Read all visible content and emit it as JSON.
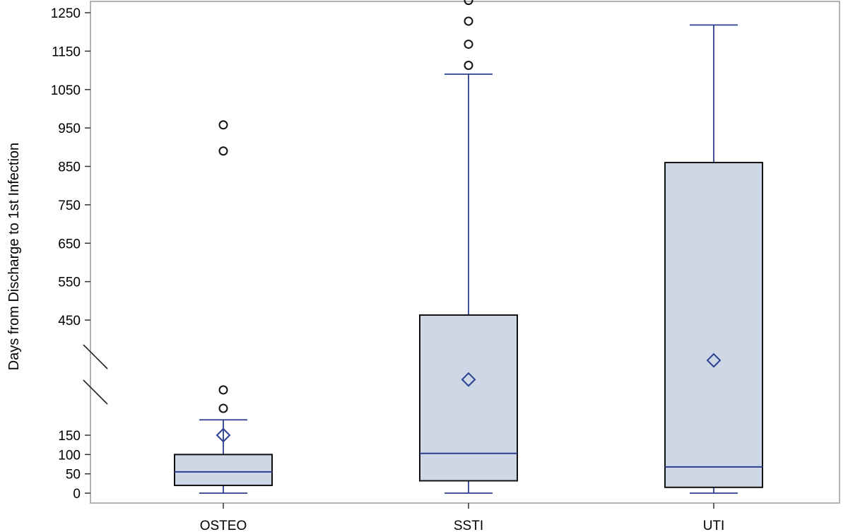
{
  "chart_data": {
    "type": "boxplot",
    "ylabel": "Days from Discharge to 1st Infection",
    "xlabel": "",
    "categories": [
      "OSTEO",
      "SSTI",
      "UTI"
    ],
    "y_axis": {
      "scale": "broken",
      "lower_segment_ticks": [
        0,
        50,
        100,
        150
      ],
      "upper_segment_ticks": [
        450,
        550,
        650,
        750,
        850,
        950,
        1050,
        1150,
        1250
      ],
      "axis_break": "between 150 and 450"
    },
    "boxes": [
      {
        "category": "OSTEO",
        "min": 0,
        "q1": 20,
        "median": 55,
        "q3": 100,
        "max": 190,
        "mean": 150,
        "outliers": [
          220,
          268,
          890,
          958
        ]
      },
      {
        "category": "SSTI",
        "min": 0,
        "q1": 32,
        "median": 103,
        "q3": 463,
        "max": 1090,
        "mean": 295,
        "outliers": [
          1113,
          1168,
          1228,
          1282
        ]
      },
      {
        "category": "UTI",
        "min": 0,
        "q1": 15,
        "median": 68,
        "q3": 860,
        "max": 1218,
        "mean": 345,
        "outliers": []
      }
    ],
    "colors": {
      "box_fill": "#cdd7e5",
      "box_edge": "#111111",
      "median": "#2b3f8f",
      "whisker": "#2b3f8f",
      "mean_marker": "#2b3f8f",
      "outlier": "#111111"
    },
    "grid": false
  }
}
